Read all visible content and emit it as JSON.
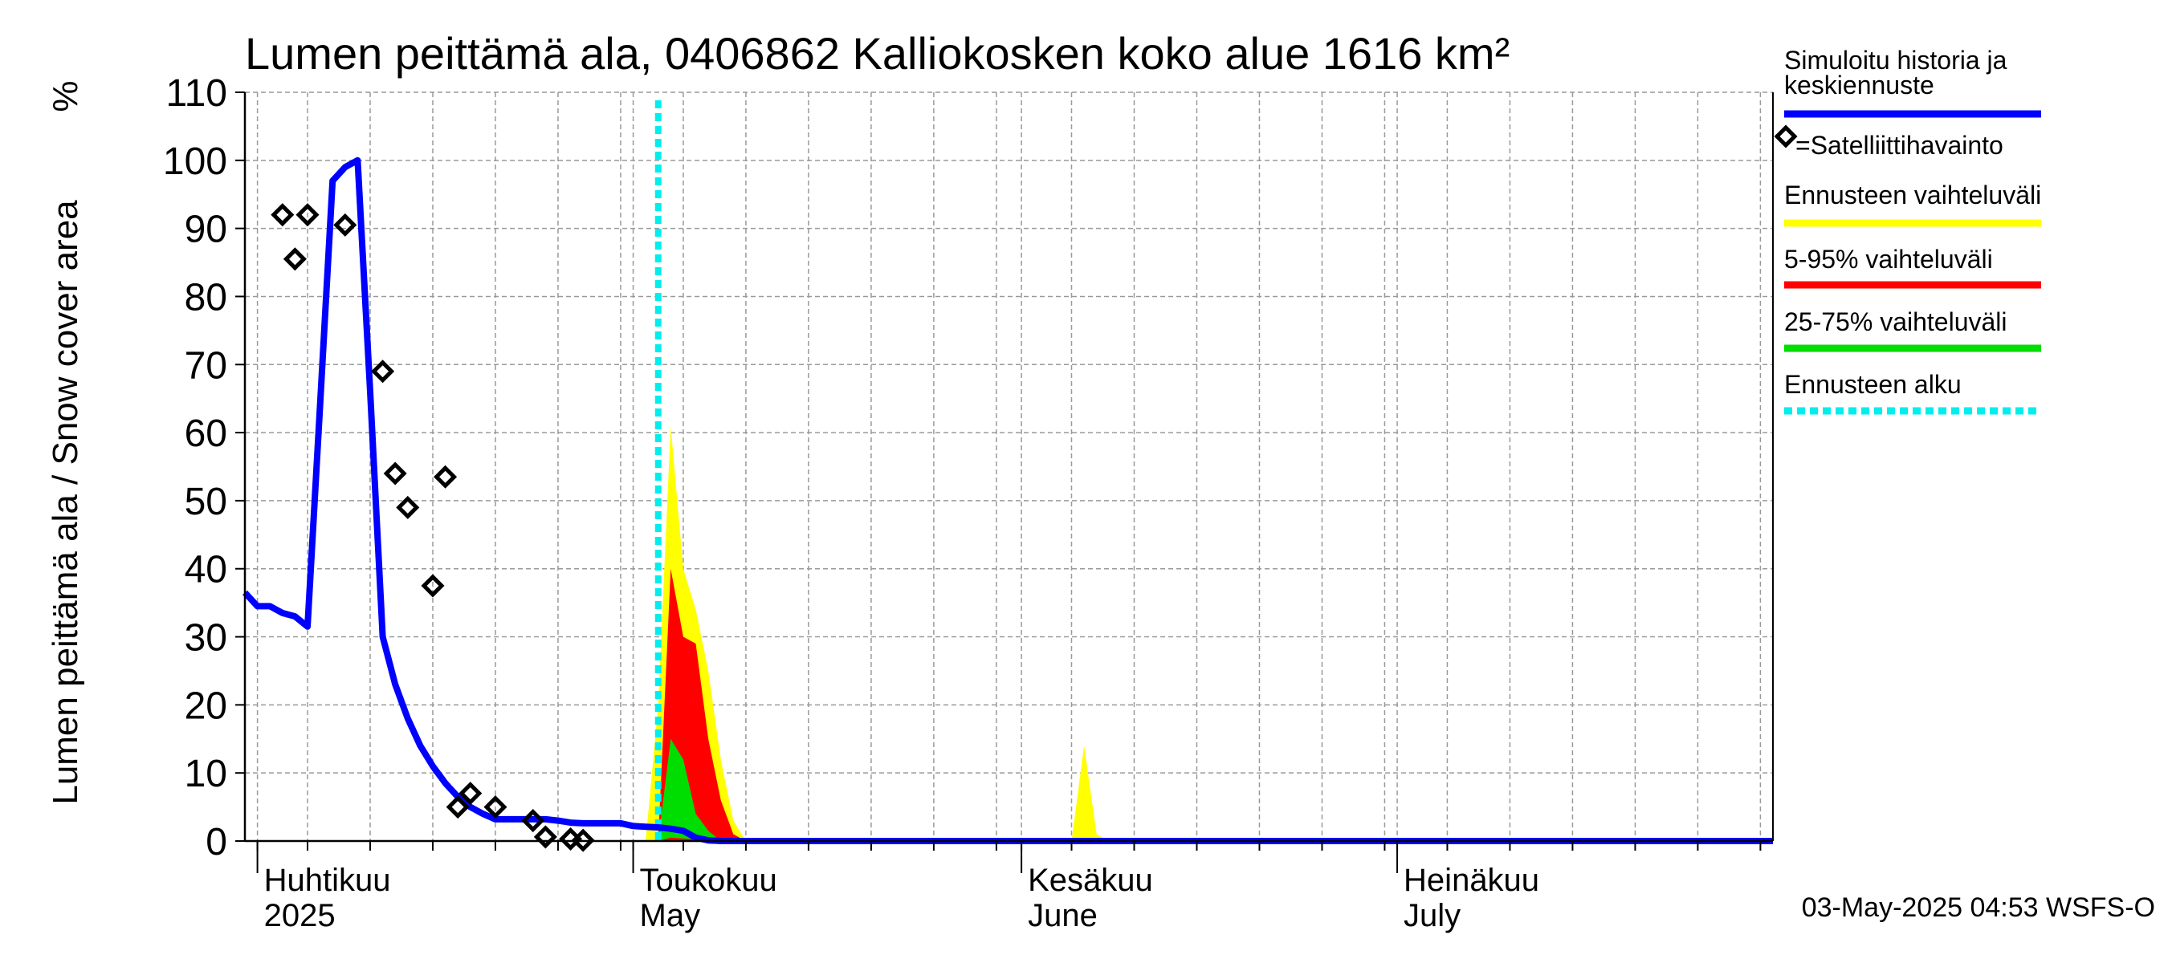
{
  "chart_data": {
    "type": "area",
    "title": "Lumen peittämä ala, 0406862 Kalliokosken koko alue 1616 km²",
    "ylabel": "Lumen peittämä ala / Snow cover area",
    "yunit": "%",
    "ylim": [
      0,
      110
    ],
    "yticks": [
      0,
      10,
      20,
      30,
      40,
      50,
      60,
      70,
      80,
      90,
      100,
      110
    ],
    "xlim": [
      "2025-03-31",
      "2025-07-31"
    ],
    "grid": true,
    "month_labels": [
      {
        "date": "2025-04-01",
        "fi": "Huhtikuu",
        "en": "2025"
      },
      {
        "date": "2025-05-01",
        "fi": "Toukokuu",
        "en": "May"
      },
      {
        "date": "2025-06-01",
        "fi": "Kesäkuu",
        "en": "June"
      },
      {
        "date": "2025-07-01",
        "fi": "Heinäkuu",
        "en": "July"
      }
    ],
    "forecast_start": "2025-05-03",
    "colors": {
      "history": "#0000ff",
      "satellite": "#000000",
      "range": "#ffff00",
      "p5_95": "#ff0000",
      "p25_75": "#00dd00",
      "forecast_start": "#00eeee"
    },
    "legend": {
      "history": "Simuloitu historia ja keskiennuste",
      "satellite": "=Satelliittihavainto",
      "range": "Ennusteen vaihteluväli",
      "p5_95": "5-95% vaihteluväli",
      "p25_75": "25-75% vaihteluväli",
      "forecast_start": "Ennusteen alku"
    },
    "series": [
      {
        "key": "history",
        "points": [
          [
            "2025-03-31",
            36.5
          ],
          [
            "2025-04-01",
            34.5
          ],
          [
            "2025-04-02",
            34.5
          ],
          [
            "2025-04-03",
            33.5
          ],
          [
            "2025-04-04",
            33
          ],
          [
            "2025-04-05",
            31.5
          ],
          [
            "2025-04-06",
            64
          ],
          [
            "2025-04-07",
            97
          ],
          [
            "2025-04-08",
            99
          ],
          [
            "2025-04-09",
            100
          ],
          [
            "2025-04-10",
            66
          ],
          [
            "2025-04-11",
            30
          ],
          [
            "2025-04-12",
            23
          ],
          [
            "2025-04-13",
            18
          ],
          [
            "2025-04-14",
            14
          ],
          [
            "2025-04-15",
            11
          ],
          [
            "2025-04-16",
            8.5
          ],
          [
            "2025-04-17",
            6.5
          ],
          [
            "2025-04-18",
            5
          ],
          [
            "2025-04-19",
            4
          ],
          [
            "2025-04-20",
            3.2
          ],
          [
            "2025-04-21",
            3.2
          ],
          [
            "2025-04-22",
            3.2
          ],
          [
            "2025-04-23",
            3.2
          ],
          [
            "2025-04-24",
            3.2
          ],
          [
            "2025-04-25",
            3
          ],
          [
            "2025-04-26",
            2.7
          ],
          [
            "2025-04-27",
            2.6
          ],
          [
            "2025-04-28",
            2.6
          ],
          [
            "2025-04-29",
            2.6
          ],
          [
            "2025-04-30",
            2.6
          ],
          [
            "2025-05-01",
            2.2
          ],
          [
            "2025-05-02",
            2.1
          ],
          [
            "2025-05-03",
            2
          ],
          [
            "2025-05-04",
            1.8
          ],
          [
            "2025-05-05",
            1.5
          ],
          [
            "2025-05-06",
            0.5
          ],
          [
            "2025-05-07",
            0.1
          ],
          [
            "2025-05-08",
            0
          ],
          [
            "2025-07-31",
            0
          ]
        ]
      }
    ],
    "satellite": [
      [
        "2025-04-03",
        92
      ],
      [
        "2025-04-04",
        85.5
      ],
      [
        "2025-04-05",
        92
      ],
      [
        "2025-04-08",
        90.5
      ],
      [
        "2025-04-11",
        69
      ],
      [
        "2025-04-12",
        54
      ],
      [
        "2025-04-13",
        49
      ],
      [
        "2025-04-15",
        37.5
      ],
      [
        "2025-04-16",
        53.5
      ],
      [
        "2025-04-17",
        5
      ],
      [
        "2025-04-18",
        7
      ],
      [
        "2025-04-20",
        5
      ],
      [
        "2025-04-23",
        3
      ],
      [
        "2025-04-24",
        0.6
      ],
      [
        "2025-04-26",
        0.3
      ],
      [
        "2025-04-27",
        0.1
      ]
    ],
    "bands": [
      {
        "key": "range",
        "upper": [
          [
            "2025-05-02",
            0
          ],
          [
            "2025-05-03",
            20
          ],
          [
            "2025-05-04",
            61
          ],
          [
            "2025-05-05",
            40
          ],
          [
            "2025-05-06",
            34
          ],
          [
            "2025-05-07",
            25
          ],
          [
            "2025-05-08",
            12
          ],
          [
            "2025-05-09",
            3
          ],
          [
            "2025-05-10",
            0
          ]
        ],
        "lower": [
          [
            "2025-05-10",
            0
          ],
          [
            "2025-05-02",
            0
          ]
        ]
      },
      {
        "key": "range",
        "upper": [
          [
            "2025-06-05",
            0
          ],
          [
            "2025-06-06",
            14
          ],
          [
            "2025-06-07",
            1
          ],
          [
            "2025-06-08",
            0
          ]
        ],
        "lower": [
          [
            "2025-06-08",
            0
          ],
          [
            "2025-06-05",
            0
          ]
        ]
      },
      {
        "key": "p5_95",
        "upper": [
          [
            "2025-05-03",
            0
          ],
          [
            "2025-05-04",
            40
          ],
          [
            "2025-05-05",
            30
          ],
          [
            "2025-05-06",
            29
          ],
          [
            "2025-05-07",
            15
          ],
          [
            "2025-05-08",
            6
          ],
          [
            "2025-05-09",
            1
          ],
          [
            "2025-05-10",
            0
          ]
        ],
        "lower": [
          [
            "2025-05-10",
            0
          ],
          [
            "2025-05-03",
            0
          ]
        ]
      },
      {
        "key": "p25_75",
        "upper": [
          [
            "2025-05-03",
            0
          ],
          [
            "2025-05-04",
            15
          ],
          [
            "2025-05-05",
            12
          ],
          [
            "2025-05-06",
            4
          ],
          [
            "2025-05-07",
            1.5
          ],
          [
            "2025-05-08",
            0
          ]
        ],
        "lower": [
          [
            "2025-05-08",
            0
          ],
          [
            "2025-05-04",
            0.5
          ],
          [
            "2025-05-03",
            0
          ]
        ]
      }
    ]
  },
  "footer": {
    "timestamp": "03-May-2025 04:53 WSFS-O"
  }
}
